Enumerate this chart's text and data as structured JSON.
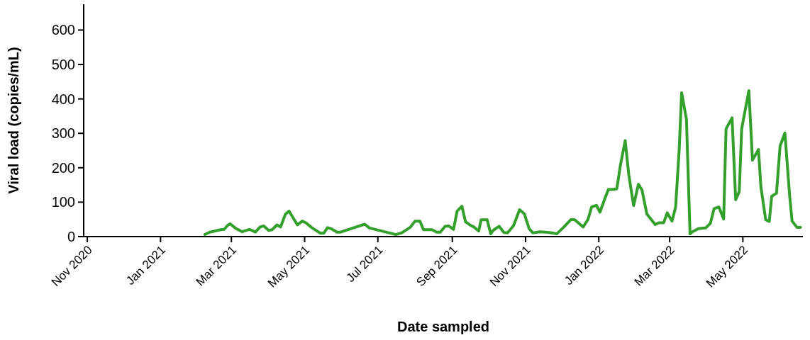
{
  "chart_data": {
    "type": "line",
    "xlabel": "Date sampled",
    "ylabel": "Viral load (copies/mL)",
    "xlim": [
      "2020-10-29",
      "2022-06-20"
    ],
    "xticks": [
      {
        "value": "2020-11-01",
        "label": "Nov 2020"
      },
      {
        "value": "2021-01-01",
        "label": "Jan 2021"
      },
      {
        "value": "2021-03-01",
        "label": "Mar 2021"
      },
      {
        "value": "2021-05-01",
        "label": "May 2021"
      },
      {
        "value": "2021-07-01",
        "label": "Jul 2021"
      },
      {
        "value": "2021-09-01",
        "label": "Sep 2021"
      },
      {
        "value": "2021-11-01",
        "label": "Nov 2021"
      },
      {
        "value": "2022-01-01",
        "label": "Jan 2022"
      },
      {
        "value": "2022-03-01",
        "label": "Mar 2022"
      },
      {
        "value": "2022-05-01",
        "label": "May 2022"
      }
    ],
    "ylim": [
      0,
      675
    ],
    "yticks": [
      0,
      100,
      200,
      300,
      400,
      500,
      600
    ],
    "grid": false,
    "marker": "none",
    "line_style": "solid",
    "x": [
      "2021-02-07",
      "2021-02-11",
      "2021-02-15",
      "2021-02-20",
      "2021-02-23",
      "2021-02-26",
      "2021-02-28",
      "2021-03-05",
      "2021-03-10",
      "2021-03-16",
      "2021-03-21",
      "2021-03-25",
      "2021-03-28",
      "2021-04-01",
      "2021-04-04",
      "2021-04-08",
      "2021-04-11",
      "2021-04-15",
      "2021-04-18",
      "2021-04-25",
      "2021-04-29",
      "2021-05-02",
      "2021-05-07",
      "2021-05-14",
      "2021-05-17",
      "2021-05-20",
      "2021-05-23",
      "2021-05-28",
      "2021-05-31",
      "2021-06-20",
      "2021-06-24",
      "2021-07-16",
      "2021-07-21",
      "2021-07-28",
      "2021-08-01",
      "2021-08-05",
      "2021-08-08",
      "2021-08-15",
      "2021-08-19",
      "2021-08-22",
      "2021-08-26",
      "2021-08-29",
      "2021-09-02",
      "2021-09-05",
      "2021-09-09",
      "2021-09-12",
      "2021-09-16",
      "2021-09-19",
      "2021-09-23",
      "2021-09-25",
      "2021-09-30",
      "2021-10-03",
      "2021-10-05",
      "2021-10-10",
      "2021-10-14",
      "2021-10-17",
      "2021-10-22",
      "2021-10-27",
      "2021-10-31",
      "2021-11-04",
      "2021-11-07",
      "2021-11-13",
      "2021-11-21",
      "2021-11-27",
      "2021-12-03",
      "2021-12-09",
      "2021-12-12",
      "2021-12-19",
      "2021-12-23",
      "2021-12-26",
      "2021-12-30",
      "2022-01-02",
      "2022-01-06",
      "2022-01-09",
      "2022-01-13",
      "2022-01-16",
      "2022-01-19",
      "2022-01-23",
      "2022-01-26",
      "2022-01-30",
      "2022-02-03",
      "2022-02-06",
      "2022-02-10",
      "2022-02-17",
      "2022-02-20",
      "2022-02-24",
      "2022-02-27",
      "2022-03-03",
      "2022-03-06",
      "2022-03-09",
      "2022-03-11",
      "2022-03-15",
      "2022-03-18",
      "2022-03-20",
      "2022-03-25",
      "2022-03-31",
      "2022-04-04",
      "2022-04-07",
      "2022-04-11",
      "2022-04-15",
      "2022-04-17",
      "2022-04-22",
      "2022-04-25",
      "2022-04-28",
      "2022-04-30",
      "2022-05-06",
      "2022-05-09",
      "2022-05-14",
      "2022-05-16",
      "2022-05-20",
      "2022-05-23",
      "2022-05-25",
      "2022-05-29",
      "2022-06-01",
      "2022-06-05",
      "2022-06-09",
      "2022-06-11",
      "2022-06-15",
      "2022-06-18"
    ],
    "series": [
      {
        "color": "#33a02c",
        "values": [
          6,
          13,
          16,
          20,
          21,
          33,
          37,
          23,
          14,
          21,
          13,
          28,
          31,
          18,
          20,
          34,
          28,
          65,
          74,
          34,
          45,
          40,
          26,
          10,
          10,
          26,
          23,
          13,
          13,
          36,
          25,
          6,
          11,
          27,
          45,
          45,
          20,
          20,
          13,
          13,
          30,
          31,
          21,
          74,
          88,
          43,
          33,
          28,
          16,
          49,
          49,
          8,
          18,
          30,
          12,
          11,
          32,
          78,
          66,
          23,
          11,
          14,
          12,
          8,
          28,
          50,
          49,
          28,
          50,
          86,
          91,
          71,
          110,
          137,
          137,
          139,
          207,
          279,
          179,
          90,
          152,
          135,
          66,
          35,
          40,
          40,
          69,
          45,
          86,
          255,
          418,
          341,
          8,
          14,
          23,
          25,
          39,
          81,
          86,
          51,
          313,
          345,
          107,
          131,
          313,
          424,
          222,
          253,
          145,
          49,
          44,
          117,
          126,
          263,
          301,
          117,
          45,
          27,
          27
        ]
      }
    ]
  }
}
